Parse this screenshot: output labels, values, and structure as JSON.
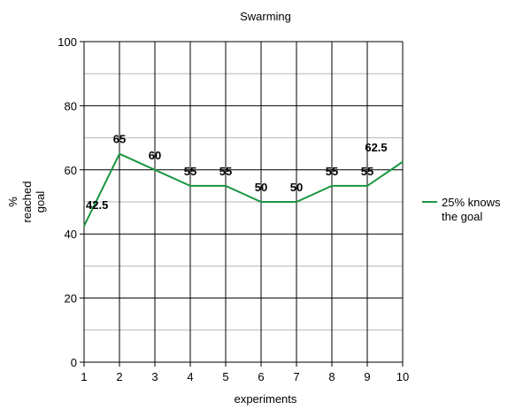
{
  "chart_data": {
    "type": "line",
    "title": "Swarming",
    "xlabel": "experiments",
    "ylabel": [
      "%",
      "reached",
      "goal"
    ],
    "x": [
      1,
      2,
      3,
      4,
      5,
      6,
      7,
      8,
      9,
      10
    ],
    "xticks": [
      "1",
      "2",
      "3",
      "4",
      "5",
      "6",
      "7",
      "8",
      "9",
      "10"
    ],
    "ylim": [
      0,
      100
    ],
    "yticks": [
      "0",
      "20",
      "40",
      "60",
      "80",
      "100"
    ],
    "grid": true,
    "legend_position": "right",
    "series": [
      {
        "name": [
          "25% knows",
          "the goal"
        ],
        "color": "#1a9641",
        "values": [
          42.5,
          65,
          60,
          55,
          55,
          50,
          50,
          55,
          55,
          62.5
        ],
        "labels": [
          "42.5",
          "65",
          "60",
          "55",
          "55",
          "50",
          "50",
          "55",
          "55",
          "62.5"
        ]
      }
    ]
  }
}
